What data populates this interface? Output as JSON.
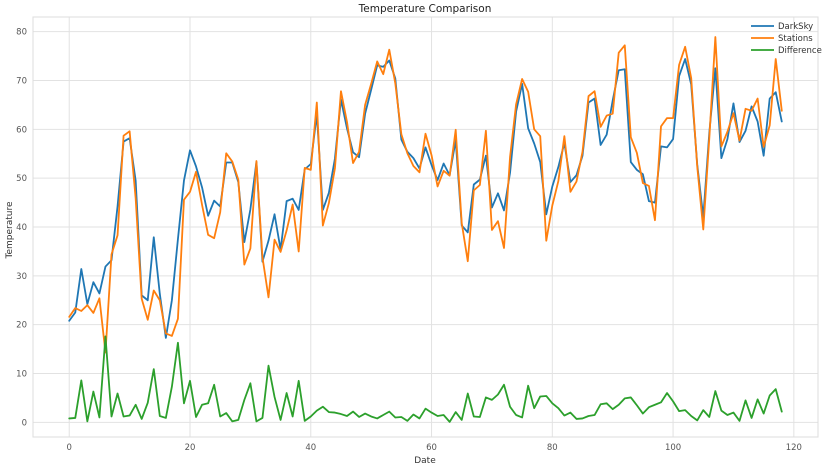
{
  "chart_data": {
    "type": "line",
    "title": "Temperature Comparison",
    "xlabel": "Date",
    "ylabel": "Temperature",
    "xlim": [
      -6,
      124
    ],
    "ylim": [
      -3,
      83
    ],
    "xticks": [
      "0",
      "20",
      "40",
      "60",
      "80",
      "100",
      "120"
    ],
    "xtick_values": [
      0,
      20,
      40,
      60,
      80,
      100,
      120
    ],
    "yticks": [
      "0",
      "10",
      "20",
      "30",
      "40",
      "50",
      "60",
      "70",
      "80"
    ],
    "ytick_values": [
      0,
      10,
      20,
      30,
      40,
      50,
      60,
      70,
      80
    ],
    "grid": true,
    "legend_position": "top-right",
    "series": [
      {
        "name": "DarkSky",
        "color": "#1f77b4",
        "values": [
          20.8,
          22.5,
          31.4,
          24.2,
          28.7,
          26.4,
          31.9,
          33.2,
          44.2,
          57.5,
          58.2,
          49.5,
          26.0,
          25.0,
          37.9,
          26.3,
          17.3,
          25.0,
          37.5,
          49.5,
          55.7,
          52.4,
          48.1,
          42.3,
          45.4,
          44.2,
          53.2,
          53.2,
          49.2,
          36.9,
          43.6,
          53.3,
          32.9,
          37.2,
          42.6,
          35.4,
          45.3,
          45.8,
          43.5,
          51.8,
          52.9,
          63.1,
          43.5,
          47.0,
          54.0,
          66.1,
          60.2,
          55.3,
          54.3,
          63.2,
          68.1,
          73.1,
          72.8,
          74.1,
          70.4,
          57.9,
          55.4,
          54.1,
          52.0,
          56.3,
          52.7,
          49.6,
          53.0,
          50.6,
          57.8,
          40.3,
          38.9,
          48.7,
          49.7,
          54.6,
          44.0,
          46.9,
          43.4,
          51.1,
          63.6,
          69.3,
          60.2,
          57.1,
          53.3,
          42.6,
          48.3,
          52.3,
          57.2,
          49.2,
          50.6,
          54.6,
          65.5,
          66.3,
          56.8,
          58.9,
          65.9,
          72.1,
          72.3,
          53.3,
          51.7,
          50.8,
          45.3,
          45.0,
          56.5,
          56.3,
          58.0,
          70.9,
          74.4,
          69.2,
          52.8,
          42.0,
          59.3,
          72.5,
          54.1,
          58.0,
          65.3,
          57.4,
          59.7,
          64.7,
          61.6,
          54.6,
          66.3,
          67.6,
          61.6
        ]
      },
      {
        "name": "Stations",
        "color": "#ff7f0e",
        "values": [
          21.6,
          23.4,
          22.8,
          24.0,
          22.4,
          25.4,
          14.3,
          34.4,
          38.3,
          58.7,
          59.6,
          45.9,
          25.3,
          21.0,
          27.0,
          25.0,
          18.2,
          17.7,
          21.2,
          45.6,
          47.2,
          51.3,
          44.5,
          38.4,
          37.7,
          43.0,
          55.1,
          53.4,
          49.7,
          32.3,
          35.6,
          53.5,
          33.8,
          25.6,
          37.4,
          34.9,
          39.3,
          44.6,
          35.0,
          52.1,
          51.7,
          65.5,
          40.3,
          44.9,
          52.0,
          67.8,
          61.5,
          53.1,
          55.4,
          65.0,
          69.3,
          73.9,
          71.3,
          76.3,
          69.4,
          59.0,
          55.1,
          52.5,
          51.2,
          59.1,
          54.7,
          48.3,
          51.5,
          50.5,
          59.9,
          40.8,
          33.0,
          47.5,
          48.6,
          59.7,
          39.4,
          41.2,
          35.7,
          54.3,
          65.1,
          70.3,
          67.7,
          60.0,
          58.6,
          37.2,
          44.4,
          49.4,
          58.6,
          47.2,
          49.3,
          55.4,
          66.8,
          67.8,
          60.5,
          62.8,
          63.2,
          75.7,
          77.2,
          58.4,
          55.2,
          49.0,
          48.4,
          41.4,
          60.6,
          62.3,
          62.3,
          73.2,
          76.9,
          70.5,
          52.4,
          39.5,
          58.2,
          78.9,
          56.5,
          59.5,
          63.3,
          57.7,
          64.2,
          63.8,
          66.3,
          56.4,
          60.8,
          74.4,
          63.8
        ]
      },
      {
        "name": "Difference",
        "color": "#2ca02c",
        "values": [
          0.8,
          0.9,
          8.6,
          0.2,
          6.3,
          1.0,
          17.6,
          1.2,
          5.9,
          1.2,
          1.4,
          3.6,
          0.7,
          4.0,
          10.9,
          1.3,
          0.9,
          7.3,
          16.3,
          3.9,
          8.5,
          1.1,
          3.6,
          3.9,
          7.7,
          1.2,
          1.9,
          0.2,
          0.5,
          4.6,
          8.0,
          0.2,
          0.9,
          11.6,
          5.2,
          0.5,
          6.0,
          1.2,
          8.5,
          0.3,
          1.2,
          2.4,
          3.2,
          2.1,
          2.0,
          1.7,
          1.3,
          2.2,
          1.1,
          1.8,
          1.2,
          0.8,
          1.5,
          2.2,
          1.0,
          1.1,
          0.3,
          1.6,
          0.8,
          2.8,
          2.0,
          1.3,
          1.5,
          0.1,
          2.1,
          0.5,
          5.9,
          1.2,
          1.1,
          5.1,
          4.6,
          5.7,
          7.7,
          3.2,
          1.5,
          1.0,
          7.5,
          2.9,
          5.3,
          5.4,
          3.9,
          2.9,
          1.4,
          2.0,
          0.7,
          0.8,
          1.3,
          1.5,
          3.7,
          3.9,
          2.7,
          3.6,
          4.9,
          5.1,
          3.5,
          1.8,
          3.1,
          3.6,
          4.1,
          6.0,
          4.3,
          2.3,
          2.5,
          1.3,
          0.4,
          2.5,
          1.1,
          6.4,
          2.4,
          1.5,
          2.0,
          0.3,
          4.5,
          0.9,
          4.7,
          1.8,
          5.5,
          6.8,
          2.2
        ]
      }
    ]
  }
}
